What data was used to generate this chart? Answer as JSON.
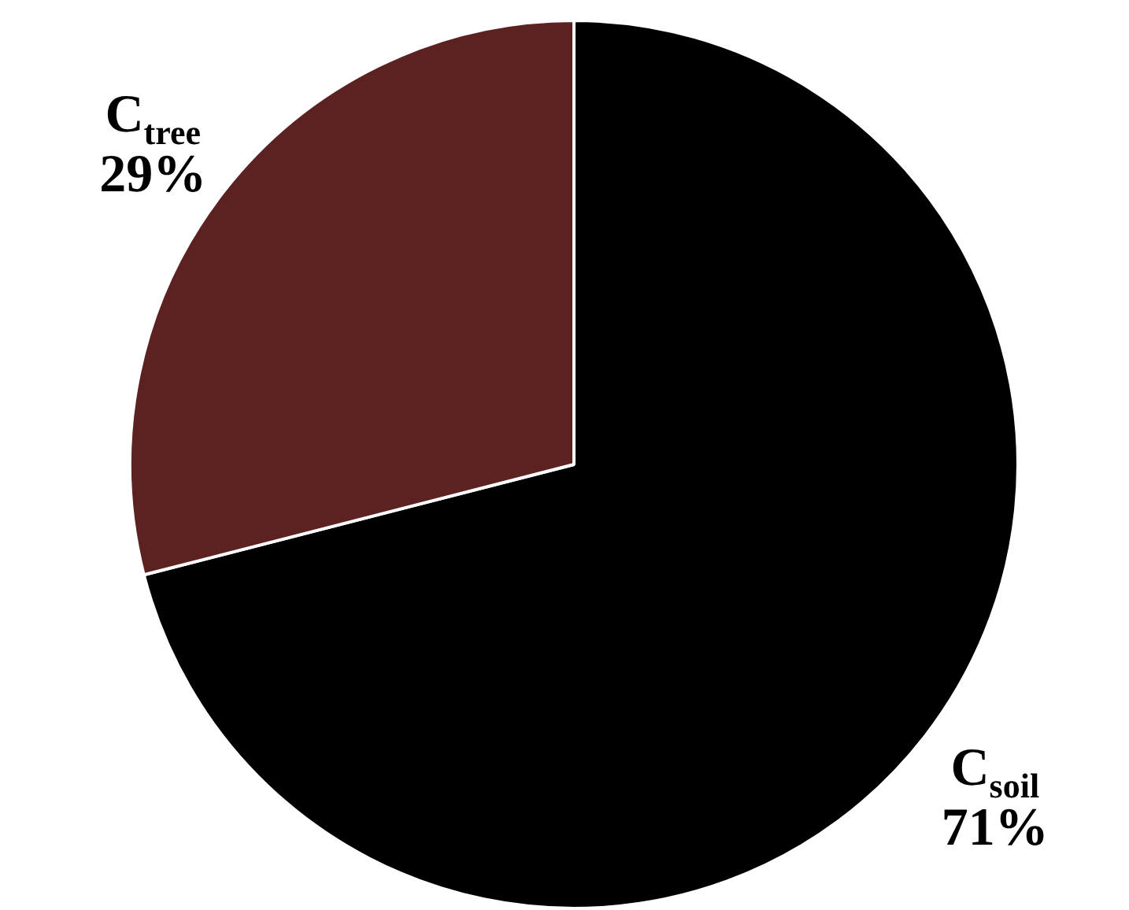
{
  "chart_data": {
    "type": "pie",
    "categories": [
      "C$_{soil}$",
      "C$_{tree}$"
    ],
    "values": [
      71,
      29
    ],
    "colors": [
      "#000000",
      "#5c2222"
    ],
    "value_labels": [
      "71%",
      "29%"
    ],
    "legend": false
  }
}
